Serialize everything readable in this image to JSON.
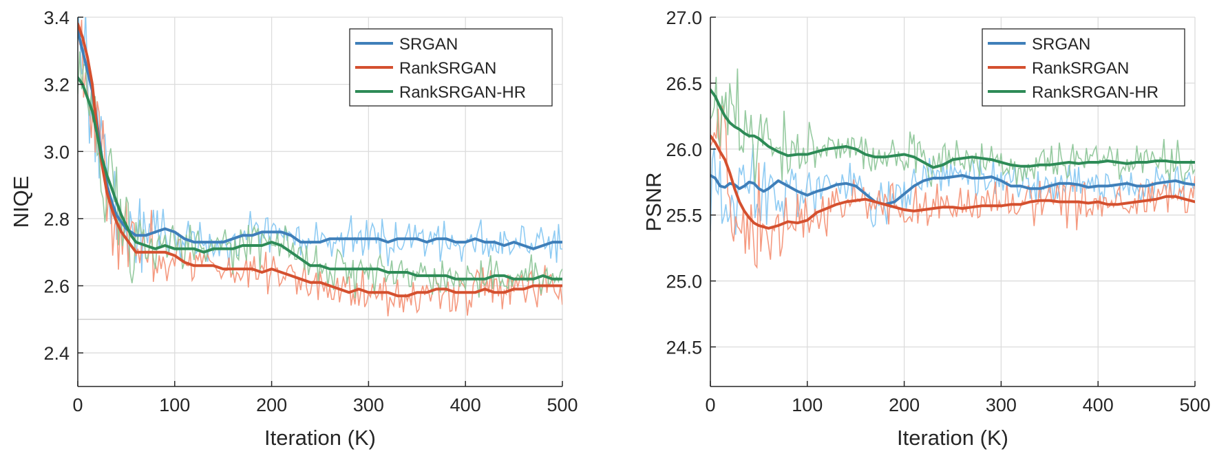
{
  "chart_data": [
    {
      "type": "line",
      "title": "",
      "xlabel": "Iteration (K)",
      "ylabel": "NIQE",
      "xlim": [
        0,
        500
      ],
      "ylim": [
        2.3,
        3.4
      ],
      "xticks": [
        0,
        100,
        200,
        300,
        400,
        500
      ],
      "yticks": [
        2.4,
        2.6,
        2.8,
        3.0,
        3.2,
        3.4
      ],
      "x_tick_labels": [
        "0",
        "100",
        "200",
        "300",
        "400",
        "500"
      ],
      "y_tick_labels": [
        "2.4",
        "2.6",
        "2.8",
        "3.0",
        "3.2",
        "3.4"
      ],
      "grid": true,
      "legend": "top-right",
      "reference_line": 2.5,
      "series": [
        {
          "name": "SRGAN",
          "color": "#3f7fb9",
          "raw_color": "#88c8f2",
          "x": [
            0,
            5,
            10,
            15,
            20,
            25,
            30,
            35,
            40,
            45,
            50,
            55,
            60,
            70,
            80,
            90,
            100,
            110,
            120,
            130,
            140,
            150,
            160,
            170,
            180,
            190,
            200,
            210,
            220,
            230,
            240,
            250,
            260,
            270,
            280,
            290,
            300,
            310,
            320,
            330,
            340,
            350,
            360,
            370,
            380,
            390,
            400,
            410,
            420,
            430,
            440,
            450,
            460,
            470,
            480,
            490,
            500
          ],
          "y": [
            3.36,
            3.3,
            3.24,
            3.18,
            3.08,
            2.98,
            2.9,
            2.85,
            2.81,
            2.79,
            2.77,
            2.76,
            2.75,
            2.75,
            2.76,
            2.77,
            2.76,
            2.74,
            2.73,
            2.73,
            2.73,
            2.73,
            2.74,
            2.75,
            2.75,
            2.76,
            2.76,
            2.76,
            2.75,
            2.73,
            2.73,
            2.73,
            2.74,
            2.74,
            2.74,
            2.74,
            2.74,
            2.74,
            2.73,
            2.74,
            2.74,
            2.74,
            2.73,
            2.74,
            2.74,
            2.73,
            2.73,
            2.74,
            2.73,
            2.73,
            2.72,
            2.73,
            2.72,
            2.71,
            2.72,
            2.73,
            2.73
          ]
        },
        {
          "name": "RankSRGAN",
          "color": "#d4502f",
          "raw_color": "#f49478",
          "x": [
            0,
            5,
            10,
            15,
            20,
            25,
            30,
            35,
            40,
            45,
            50,
            55,
            60,
            70,
            80,
            90,
            100,
            110,
            120,
            130,
            140,
            150,
            160,
            170,
            180,
            190,
            200,
            210,
            220,
            230,
            240,
            250,
            260,
            270,
            280,
            290,
            300,
            310,
            320,
            330,
            340,
            350,
            360,
            370,
            380,
            390,
            400,
            410,
            420,
            430,
            440,
            450,
            460,
            470,
            480,
            490,
            500
          ],
          "y": [
            3.38,
            3.34,
            3.28,
            3.2,
            3.06,
            2.96,
            2.88,
            2.83,
            2.79,
            2.76,
            2.74,
            2.72,
            2.7,
            2.7,
            2.7,
            2.7,
            2.69,
            2.67,
            2.66,
            2.66,
            2.66,
            2.65,
            2.65,
            2.65,
            2.65,
            2.64,
            2.65,
            2.64,
            2.63,
            2.62,
            2.61,
            2.61,
            2.6,
            2.59,
            2.58,
            2.59,
            2.58,
            2.58,
            2.58,
            2.57,
            2.57,
            2.58,
            2.58,
            2.59,
            2.59,
            2.58,
            2.58,
            2.58,
            2.59,
            2.58,
            2.58,
            2.59,
            2.59,
            2.6,
            2.6,
            2.6,
            2.6
          ]
        },
        {
          "name": "RankSRGAN-HR",
          "color": "#2e8b57",
          "raw_color": "#8fc79a",
          "x": [
            0,
            5,
            10,
            15,
            20,
            25,
            30,
            35,
            40,
            45,
            50,
            55,
            60,
            70,
            80,
            90,
            100,
            110,
            120,
            130,
            140,
            150,
            160,
            170,
            180,
            190,
            200,
            210,
            220,
            230,
            240,
            250,
            260,
            270,
            280,
            290,
            300,
            310,
            320,
            330,
            340,
            350,
            360,
            370,
            380,
            390,
            400,
            410,
            420,
            430,
            440,
            450,
            460,
            470,
            480,
            490,
            500
          ],
          "y": [
            3.22,
            3.2,
            3.16,
            3.12,
            3.05,
            2.98,
            2.93,
            2.89,
            2.85,
            2.81,
            2.78,
            2.75,
            2.73,
            2.72,
            2.71,
            2.72,
            2.71,
            2.71,
            2.71,
            2.7,
            2.71,
            2.71,
            2.71,
            2.72,
            2.72,
            2.72,
            2.73,
            2.72,
            2.7,
            2.68,
            2.66,
            2.66,
            2.65,
            2.65,
            2.65,
            2.65,
            2.65,
            2.65,
            2.64,
            2.64,
            2.64,
            2.63,
            2.63,
            2.63,
            2.63,
            2.62,
            2.62,
            2.62,
            2.62,
            2.63,
            2.63,
            2.62,
            2.62,
            2.62,
            2.63,
            2.62,
            2.62
          ]
        }
      ]
    },
    {
      "type": "line",
      "title": "",
      "xlabel": "Iteration (K)",
      "ylabel": "PSNR",
      "xlim": [
        0,
        500
      ],
      "ylim": [
        24.2,
        27.0
      ],
      "xticks": [
        0,
        100,
        200,
        300,
        400,
        500
      ],
      "yticks": [
        24.5,
        25.0,
        25.5,
        26.0,
        26.5,
        27.0
      ],
      "x_tick_labels": [
        "0",
        "100",
        "200",
        "300",
        "400",
        "500"
      ],
      "y_tick_labels": [
        "24.5",
        "25.0",
        "25.5",
        "26.0",
        "26.5",
        "27.0"
      ],
      "grid": true,
      "legend": "top-right",
      "series": [
        {
          "name": "SRGAN",
          "color": "#3f7fb9",
          "raw_color": "#88c8f2",
          "x": [
            0,
            5,
            10,
            15,
            20,
            25,
            30,
            35,
            40,
            45,
            50,
            55,
            60,
            70,
            80,
            90,
            100,
            110,
            120,
            130,
            140,
            150,
            160,
            170,
            180,
            190,
            200,
            210,
            220,
            230,
            240,
            250,
            260,
            270,
            280,
            290,
            300,
            310,
            320,
            330,
            340,
            350,
            360,
            370,
            380,
            390,
            400,
            410,
            420,
            430,
            440,
            450,
            460,
            470,
            480,
            490,
            500
          ],
          "y": [
            25.8,
            25.78,
            25.72,
            25.71,
            25.74,
            25.73,
            25.7,
            25.72,
            25.75,
            25.74,
            25.7,
            25.68,
            25.7,
            25.76,
            25.72,
            25.68,
            25.65,
            25.68,
            25.7,
            25.73,
            25.74,
            25.72,
            25.66,
            25.6,
            25.58,
            25.6,
            25.66,
            25.72,
            25.76,
            25.78,
            25.78,
            25.79,
            25.8,
            25.78,
            25.78,
            25.79,
            25.76,
            25.72,
            25.72,
            25.7,
            25.7,
            25.72,
            25.74,
            25.74,
            25.73,
            25.71,
            25.72,
            25.72,
            25.73,
            25.74,
            25.72,
            25.72,
            25.74,
            25.75,
            25.76,
            25.74,
            25.73
          ]
        },
        {
          "name": "RankSRGAN",
          "color": "#d4502f",
          "raw_color": "#f49478",
          "x": [
            0,
            5,
            10,
            15,
            20,
            25,
            30,
            35,
            40,
            45,
            50,
            55,
            60,
            70,
            80,
            90,
            100,
            110,
            120,
            130,
            140,
            150,
            160,
            170,
            180,
            190,
            200,
            210,
            220,
            230,
            240,
            250,
            260,
            270,
            280,
            290,
            300,
            310,
            320,
            330,
            340,
            350,
            360,
            370,
            380,
            390,
            400,
            410,
            420,
            430,
            440,
            450,
            460,
            470,
            480,
            490,
            500
          ],
          "y": [
            26.1,
            26.05,
            25.98,
            25.92,
            25.82,
            25.7,
            25.6,
            25.53,
            25.48,
            25.44,
            25.42,
            25.41,
            25.4,
            25.42,
            25.45,
            25.44,
            25.46,
            25.52,
            25.55,
            25.58,
            25.6,
            25.61,
            25.62,
            25.6,
            25.58,
            25.56,
            25.54,
            25.53,
            25.54,
            25.55,
            25.56,
            25.56,
            25.55,
            25.56,
            25.57,
            25.57,
            25.57,
            25.58,
            25.58,
            25.6,
            25.61,
            25.61,
            25.6,
            25.6,
            25.6,
            25.59,
            25.6,
            25.58,
            25.58,
            25.59,
            25.6,
            25.61,
            25.62,
            25.64,
            25.64,
            25.62,
            25.6
          ]
        },
        {
          "name": "RankSRGAN-HR",
          "color": "#2e8b57",
          "raw_color": "#8fc79a",
          "x": [
            0,
            5,
            10,
            15,
            20,
            25,
            30,
            35,
            40,
            45,
            50,
            55,
            60,
            70,
            80,
            90,
            100,
            110,
            120,
            130,
            140,
            150,
            160,
            170,
            180,
            190,
            200,
            210,
            220,
            230,
            240,
            250,
            260,
            270,
            280,
            290,
            300,
            310,
            320,
            330,
            340,
            350,
            360,
            370,
            380,
            390,
            400,
            410,
            420,
            430,
            440,
            450,
            460,
            470,
            480,
            490,
            500
          ],
          "y": [
            26.45,
            26.4,
            26.32,
            26.25,
            26.2,
            26.17,
            26.15,
            26.12,
            26.1,
            26.1,
            26.08,
            26.05,
            26.02,
            25.98,
            25.95,
            25.96,
            25.96,
            25.98,
            26.0,
            26.01,
            26.02,
            26.0,
            25.96,
            25.94,
            25.94,
            25.95,
            25.96,
            25.94,
            25.9,
            25.86,
            25.88,
            25.92,
            25.93,
            25.94,
            25.93,
            25.92,
            25.9,
            25.88,
            25.87,
            25.87,
            25.88,
            25.88,
            25.89,
            25.9,
            25.89,
            25.9,
            25.9,
            25.91,
            25.9,
            25.89,
            25.9,
            25.9,
            25.91,
            25.91,
            25.9,
            25.9,
            25.9
          ]
        }
      ]
    }
  ]
}
